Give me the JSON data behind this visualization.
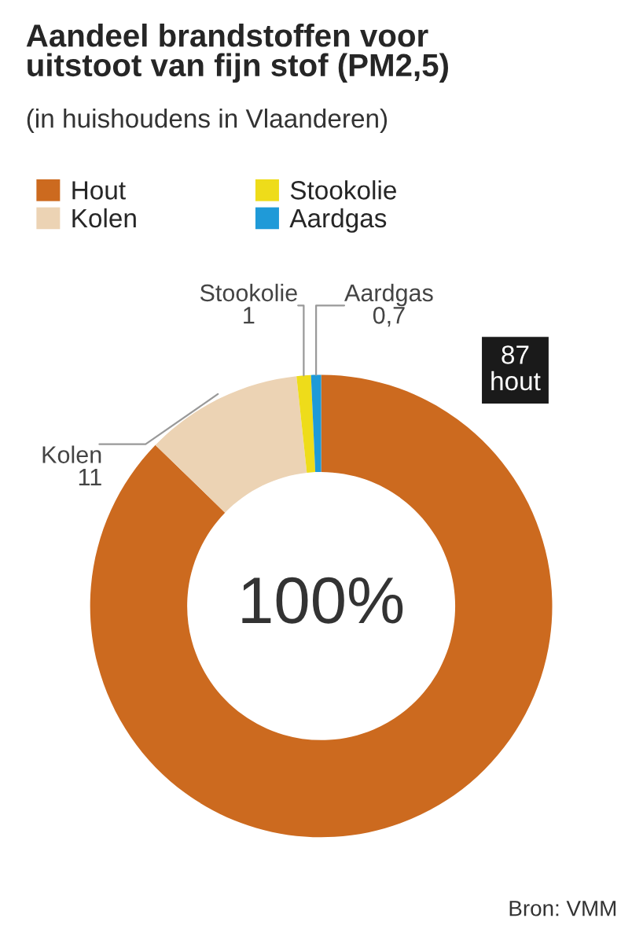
{
  "chart_data": {
    "type": "donut",
    "title": "Aandeel brandstoffen voor\nuitstoot van fijn stof (PM2,5)",
    "subtitle": "(in huishoudens in Vlaanderen)",
    "categories": [
      "Hout",
      "Kolen",
      "Stookolie",
      "Aardgas"
    ],
    "values": [
      87,
      11,
      1,
      0.7
    ],
    "value_labels": [
      "87",
      "11",
      "1",
      "0,7"
    ],
    "colors": [
      "#cc6a1f",
      "#ecd3b4",
      "#eedc1a",
      "#1f9ad8"
    ],
    "legend": "top left",
    "annotations": [
      "hout",
      "100%",
      "Bron: VMM"
    ]
  }
}
